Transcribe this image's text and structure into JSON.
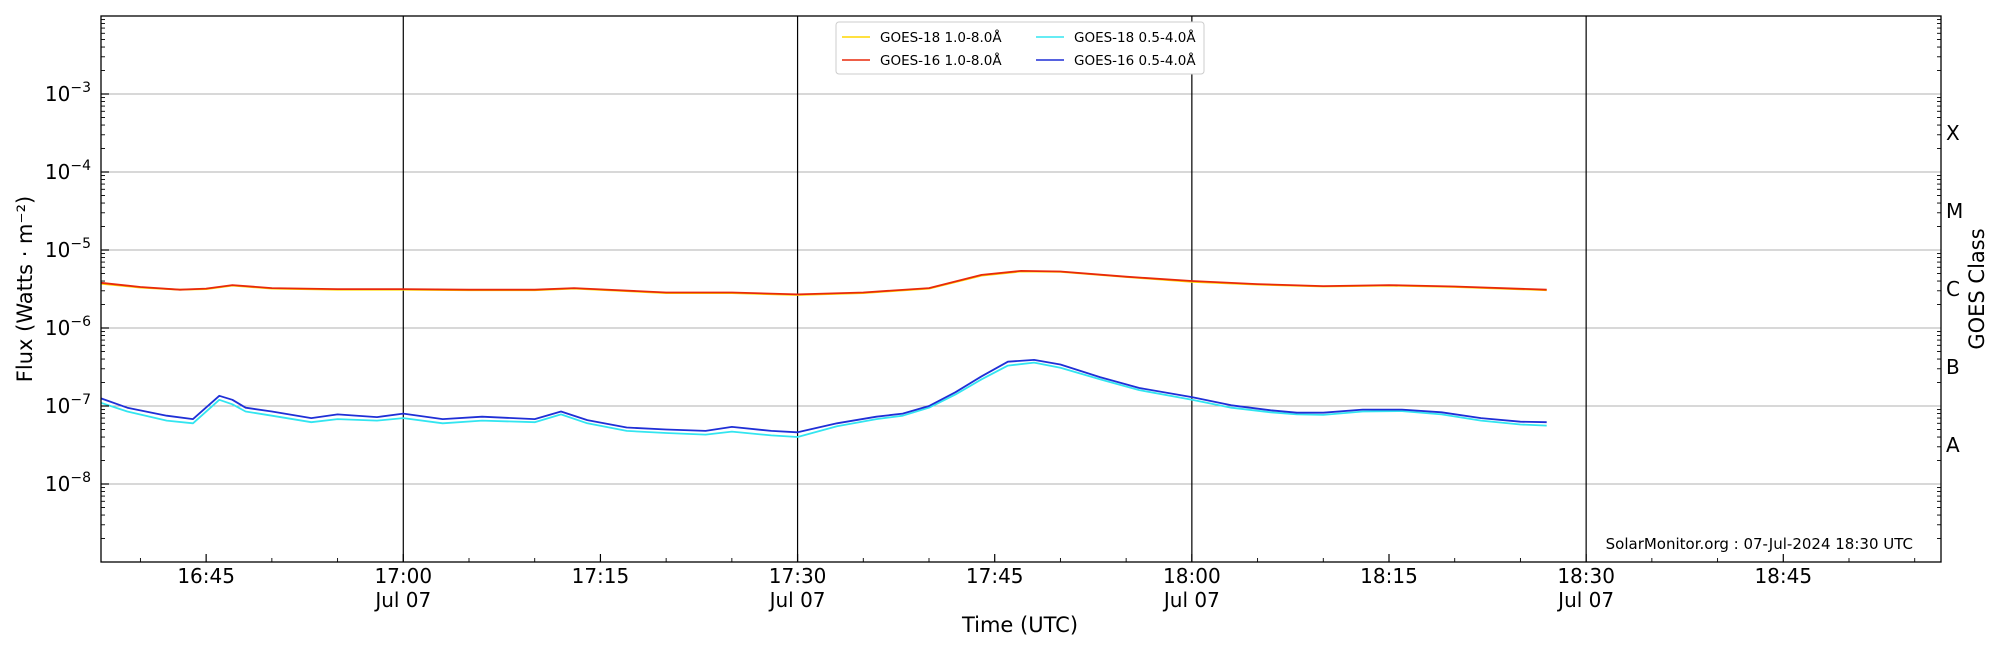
{
  "chart_data": {
    "type": "line",
    "title": "",
    "xlabel": "Time (UTC)",
    "ylabel": "Flux (Watts · m⁻²)",
    "y2label": "GOES Class",
    "yscale": "log",
    "xlim": [
      "16:37",
      "18:57"
    ],
    "ylim": [
      1e-09,
      0.01
    ],
    "grid": "horizontal at decades",
    "legend_placement": "upper-center",
    "x_ticks": [
      {
        "time": "16:45",
        "label": "16:45",
        "sublabel": ""
      },
      {
        "time": "17:00",
        "label": "17:00",
        "sublabel": "Jul 07"
      },
      {
        "time": "17:15",
        "label": "17:15",
        "sublabel": ""
      },
      {
        "time": "17:30",
        "label": "17:30",
        "sublabel": "Jul 07"
      },
      {
        "time": "17:45",
        "label": "17:45",
        "sublabel": ""
      },
      {
        "time": "18:00",
        "label": "18:00",
        "sublabel": "Jul 07"
      },
      {
        "time": "18:15",
        "label": "18:15",
        "sublabel": ""
      },
      {
        "time": "18:30",
        "label": "18:30",
        "sublabel": "Jul 07"
      },
      {
        "time": "18:45",
        "label": "18:45",
        "sublabel": ""
      }
    ],
    "vertical_lines": [
      "17:00",
      "17:30",
      "18:00",
      "18:30"
    ],
    "y_ticks": [
      {
        "value": 1e-08,
        "base": "10",
        "exp": "−8"
      },
      {
        "value": 1e-07,
        "base": "10",
        "exp": "−7"
      },
      {
        "value": 1e-06,
        "base": "10",
        "exp": "−6"
      },
      {
        "value": 1e-05,
        "base": "10",
        "exp": "−5"
      },
      {
        "value": 0.0001,
        "base": "10",
        "exp": "−4"
      },
      {
        "value": 0.001,
        "base": "10",
        "exp": "−3"
      }
    ],
    "goes_classes": [
      {
        "label": "A",
        "value": 3.16e-08
      },
      {
        "label": "B",
        "value": 3.16e-07
      },
      {
        "label": "C",
        "value": 3.16e-06
      },
      {
        "label": "M",
        "value": 3.16e-05
      },
      {
        "label": "X",
        "value": 0.000316
      }
    ],
    "annotation": "SolarMonitor.org : 07-Jul-2024 18:30 UTC",
    "series": [
      {
        "name": "GOES-18 1.0-8.0Å",
        "color": "#FFD700",
        "x": [
          "16:37",
          "16:40",
          "16:43",
          "16:45",
          "16:47",
          "16:50",
          "16:55",
          "17:00",
          "17:05",
          "17:10",
          "17:13",
          "17:20",
          "17:25",
          "17:30",
          "17:35",
          "17:40",
          "17:44",
          "17:47",
          "17:50",
          "17:55",
          "18:00",
          "18:05",
          "18:10",
          "18:15",
          "18:20",
          "18:27"
        ],
        "values": [
          3.7e-06,
          3.3e-06,
          3.1e-06,
          3.15e-06,
          3.5e-06,
          3.2e-06,
          3.1e-06,
          3.1e-06,
          3.05e-06,
          3.05e-06,
          3.2e-06,
          2.8e-06,
          2.8e-06,
          2.65e-06,
          2.8e-06,
          3.2e-06,
          4.7e-06,
          5.3e-06,
          5.25e-06,
          4.5e-06,
          3.9e-06,
          3.6e-06,
          3.4e-06,
          3.5e-06,
          3.35e-06,
          3.05e-06
        ]
      },
      {
        "name": "GOES-16 1.0-8.0Å",
        "color": "#E8290B",
        "x": [
          "16:37",
          "16:40",
          "16:43",
          "16:45",
          "16:47",
          "16:50",
          "16:55",
          "17:00",
          "17:05",
          "17:10",
          "17:13",
          "17:20",
          "17:25",
          "17:30",
          "17:35",
          "17:40",
          "17:44",
          "17:47",
          "17:50",
          "17:55",
          "18:00",
          "18:05",
          "18:10",
          "18:15",
          "18:20",
          "18:27"
        ],
        "values": [
          3.8e-06,
          3.35e-06,
          3.1e-06,
          3.2e-06,
          3.55e-06,
          3.25e-06,
          3.15e-06,
          3.15e-06,
          3.1e-06,
          3.1e-06,
          3.25e-06,
          2.85e-06,
          2.85e-06,
          2.7e-06,
          2.85e-06,
          3.25e-06,
          4.8e-06,
          5.4e-06,
          5.3e-06,
          4.55e-06,
          4e-06,
          3.65e-06,
          3.45e-06,
          3.55e-06,
          3.4e-06,
          3.1e-06
        ]
      },
      {
        "name": "GOES-18 0.5-4.0Å",
        "color": "#33E5F0",
        "x": [
          "16:37",
          "16:39",
          "16:42",
          "16:44",
          "16:46",
          "16:47",
          "16:48",
          "16:50",
          "16:53",
          "16:55",
          "16:58",
          "17:00",
          "17:03",
          "17:06",
          "17:10",
          "17:12",
          "17:14",
          "17:17",
          "17:20",
          "17:23",
          "17:25",
          "17:28",
          "17:30",
          "17:33",
          "17:36",
          "17:38",
          "17:40",
          "17:42",
          "17:44",
          "17:46",
          "17:48",
          "17:50",
          "17:53",
          "17:56",
          "18:00",
          "18:03",
          "18:06",
          "18:08",
          "18:10",
          "18:13",
          "18:16",
          "18:19",
          "18:22",
          "18:25",
          "18:27"
        ],
        "values": [
          1.1e-07,
          8.5e-08,
          6.5e-08,
          6e-08,
          1.2e-07,
          1.05e-07,
          8.5e-08,
          7.5e-08,
          6.2e-08,
          6.8e-08,
          6.5e-08,
          7e-08,
          6e-08,
          6.5e-08,
          6.2e-08,
          7.8e-08,
          6e-08,
          4.8e-08,
          4.5e-08,
          4.3e-08,
          4.7e-08,
          4.2e-08,
          4e-08,
          5.5e-08,
          6.8e-08,
          7.5e-08,
          9.5e-08,
          1.4e-07,
          2.2e-07,
          3.3e-07,
          3.6e-07,
          3.1e-07,
          2.2e-07,
          1.6e-07,
          1.2e-07,
          9.5e-08,
          8.3e-08,
          7.8e-08,
          7.7e-08,
          8.5e-08,
          8.6e-08,
          7.8e-08,
          6.5e-08,
          5.8e-08,
          5.6e-08
        ]
      },
      {
        "name": "GOES-16 0.5-4.0Å",
        "color": "#1F2FD6",
        "x": [
          "16:37",
          "16:39",
          "16:42",
          "16:44",
          "16:46",
          "16:47",
          "16:48",
          "16:50",
          "16:53",
          "16:55",
          "16:58",
          "17:00",
          "17:03",
          "17:06",
          "17:10",
          "17:12",
          "17:14",
          "17:17",
          "17:20",
          "17:23",
          "17:25",
          "17:28",
          "17:30",
          "17:33",
          "17:36",
          "17:38",
          "17:40",
          "17:42",
          "17:44",
          "17:46",
          "17:48",
          "17:50",
          "17:53",
          "17:56",
          "18:00",
          "18:03",
          "18:06",
          "18:08",
          "18:10",
          "18:13",
          "18:16",
          "18:19",
          "18:22",
          "18:25",
          "18:27"
        ],
        "values": [
          1.25e-07,
          9.5e-08,
          7.5e-08,
          6.8e-08,
          1.35e-07,
          1.2e-07,
          9.5e-08,
          8.5e-08,
          7e-08,
          7.8e-08,
          7.2e-08,
          8e-08,
          6.8e-08,
          7.3e-08,
          6.8e-08,
          8.5e-08,
          6.6e-08,
          5.3e-08,
          5e-08,
          4.8e-08,
          5.4e-08,
          4.8e-08,
          4.6e-08,
          6e-08,
          7.3e-08,
          8e-08,
          1e-07,
          1.5e-07,
          2.4e-07,
          3.7e-07,
          3.9e-07,
          3.4e-07,
          2.35e-07,
          1.7e-07,
          1.3e-07,
          1.02e-07,
          8.8e-08,
          8.2e-08,
          8.2e-08,
          9e-08,
          9e-08,
          8.3e-08,
          7e-08,
          6.3e-08,
          6.2e-08
        ]
      }
    ]
  }
}
